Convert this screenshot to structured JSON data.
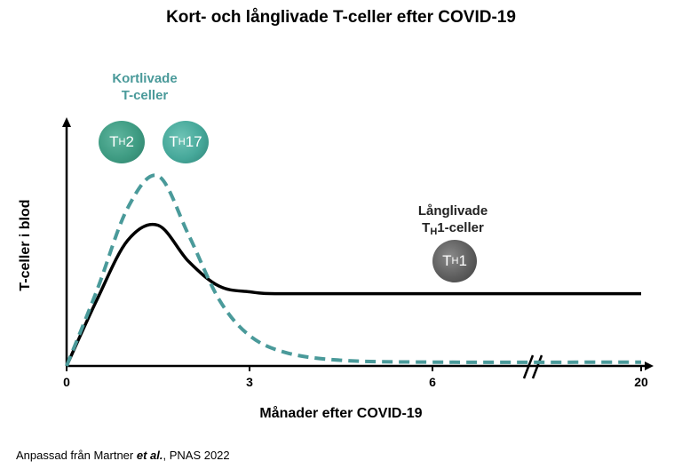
{
  "title": "Kort- och långlivade T-celler efter COVID-19",
  "footer": {
    "before": "Anpassad från Martner ",
    "etal": "et al.",
    "after": ", PNAS 2022"
  },
  "annotations": {
    "short_line1": "Kortlivade",
    "short_line2": "T-celler",
    "long_line1": "Långlivade",
    "long_line2_pre": "T",
    "long_line2_sub": "H",
    "long_line2_post": "1-celler"
  },
  "cells": {
    "th2": {
      "main": "T",
      "sub": "H",
      "tail": "2"
    },
    "th17": {
      "main": "T",
      "sub": "H",
      "tail": "17"
    },
    "th1": {
      "main": "T",
      "sub": "H",
      "tail": "1"
    }
  },
  "colors": {
    "teal": "#4a9a9a",
    "black": "#000000"
  },
  "chart_data": {
    "type": "line",
    "title": "Kort- och långlivade T-celler efter COVID-19",
    "xlabel": "Månader efter COVID-19",
    "ylabel": "T-celler i blod",
    "x_ticks": [
      "0",
      "3",
      "6",
      "20"
    ],
    "axis_break": "between 6 and 20",
    "series": [
      {
        "name": "Långlivade TH1-celler",
        "style": "solid",
        "color": "#000000",
        "x": [
          0,
          0.5,
          1.0,
          1.5,
          2.0,
          2.5,
          3.0,
          3.6,
          6,
          20
        ],
        "y": [
          0,
          0.35,
          0.66,
          0.74,
          0.55,
          0.42,
          0.39,
          0.38,
          0.38,
          0.38
        ]
      },
      {
        "name": "Kortlivade T-celler",
        "style": "dashed",
        "color": "#4a9a9a",
        "x": [
          0,
          0.5,
          1.0,
          1.5,
          2.0,
          2.5,
          3.0,
          3.6,
          4.5,
          6,
          20
        ],
        "y": [
          0,
          0.4,
          0.83,
          1.0,
          0.69,
          0.35,
          0.16,
          0.07,
          0.03,
          0.02,
          0.02
        ]
      }
    ]
  }
}
